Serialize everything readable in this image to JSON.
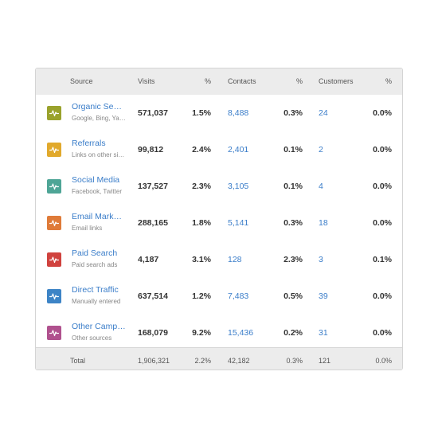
{
  "table": {
    "headers": {
      "source": "Source",
      "visits": "Visits",
      "visits_pct": "%",
      "contacts": "Contacts",
      "contacts_pct": "%",
      "customers": "Customers",
      "customers_pct": "%"
    },
    "rows": [
      {
        "name": "Organic Search",
        "desc": "Google, Bing, Yahoo",
        "visits": "571,037",
        "visits_pct": "1.5%",
        "contacts": "8,488",
        "contacts_pct": "0.3%",
        "customers": "24",
        "customers_pct": "0.0%",
        "color": "#9aa22c",
        "icon": "activity-icon"
      },
      {
        "name": "Referrals",
        "desc": "Links on other sites",
        "visits": "99,812",
        "visits_pct": "2.4%",
        "contacts": "2,401",
        "contacts_pct": "0.1%",
        "customers": "2",
        "customers_pct": "0.0%",
        "color": "#e1a92c",
        "icon": "activity-icon"
      },
      {
        "name": "Social Media",
        "desc": "Facebook, Twitter",
        "visits": "137,527",
        "visits_pct": "2.3%",
        "contacts": "3,105",
        "contacts_pct": "0.1%",
        "customers": "4",
        "customers_pct": "0.0%",
        "color": "#4ea596",
        "icon": "activity-icon"
      },
      {
        "name": "Email Marketing",
        "desc": "Email links",
        "visits": "288,165",
        "visits_pct": "1.8%",
        "contacts": "5,141",
        "contacts_pct": "0.3%",
        "customers": "18",
        "customers_pct": "0.0%",
        "color": "#df7b39",
        "icon": "activity-icon"
      },
      {
        "name": "Paid Search",
        "desc": "Paid search ads",
        "visits": "4,187",
        "visits_pct": "3.1%",
        "contacts": "128",
        "contacts_pct": "2.3%",
        "customers": "3",
        "customers_pct": "0.1%",
        "color": "#d0423e",
        "icon": "activity-icon"
      },
      {
        "name": "Direct Traffic",
        "desc": "Manually entered",
        "visits": "637,514",
        "visits_pct": "1.2%",
        "contacts": "7,483",
        "contacts_pct": "0.5%",
        "customers": "39",
        "customers_pct": "0.0%",
        "color": "#3d84c6",
        "icon": "activity-icon"
      },
      {
        "name": "Other Campaigns",
        "desc": "Other sources",
        "visits": "168,079",
        "visits_pct": "9.2%",
        "contacts": "15,436",
        "contacts_pct": "0.2%",
        "customers": "31",
        "customers_pct": "0.0%",
        "color": "#b0518e",
        "icon": "activity-icon"
      }
    ],
    "total": {
      "label": "Total",
      "visits": "1,906,321",
      "visits_pct": "2.2%",
      "contacts": "42,182",
      "contacts_pct": "0.3%",
      "customers": "121",
      "customers_pct": "0.0%"
    }
  }
}
